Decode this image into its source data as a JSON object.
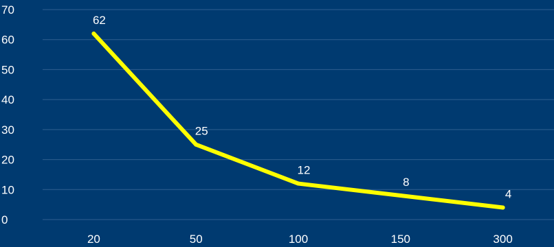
{
  "chart_data": {
    "type": "line",
    "categories": [
      "20",
      "50",
      "100",
      "150",
      "300"
    ],
    "series": [
      {
        "values": [
          62,
          25,
          12,
          8,
          4
        ]
      }
    ],
    "data_labels": [
      "62",
      "25",
      "12",
      "8",
      "4"
    ],
    "y_ticks": [
      "0",
      "10",
      "20",
      "30",
      "40",
      "50",
      "60",
      "70"
    ],
    "ylim": [
      0,
      70
    ],
    "grid": true,
    "legend": "none",
    "colors": {
      "background": "#003a70",
      "line": "#ffff00",
      "grid": "#2f5f8f",
      "text": "#ffffff"
    }
  }
}
